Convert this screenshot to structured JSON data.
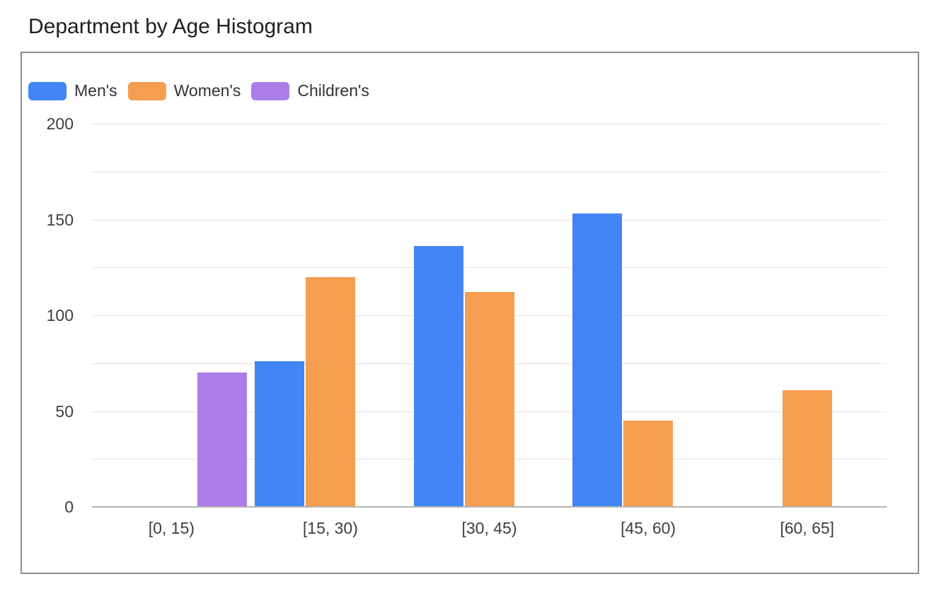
{
  "page": {
    "title": "Department by Age Histogram"
  },
  "chart_data": {
    "type": "bar",
    "title": "Department by Age Histogram",
    "categories": [
      "[0, 15)",
      "[15, 30)",
      "[30, 45)",
      "[45, 60)",
      "[60, 65]"
    ],
    "series": [
      {
        "name": "Men's",
        "color": "#4285f4",
        "values": [
          null,
          76,
          136,
          153,
          null
        ]
      },
      {
        "name": "Women's",
        "color": "#f59e4f",
        "values": [
          null,
          120,
          112,
          45,
          61
        ]
      },
      {
        "name": "Children's",
        "color": "#ab7de6",
        "values": [
          70,
          null,
          null,
          null,
          null
        ]
      }
    ],
    "xlabel": "",
    "ylabel": "",
    "ylim": [
      0,
      200
    ],
    "y_ticks": [
      0,
      50,
      100,
      150,
      200
    ],
    "grid_step": 25,
    "grid": true,
    "legend_position": "top-left"
  },
  "colors": {
    "grid": "#e4e4e4",
    "axis_line": "#b3b3b3",
    "tick_text": "#3c4043",
    "title_text": "#1f1f1f",
    "frame_border": "#8c8c8c",
    "background": "#ffffff"
  }
}
